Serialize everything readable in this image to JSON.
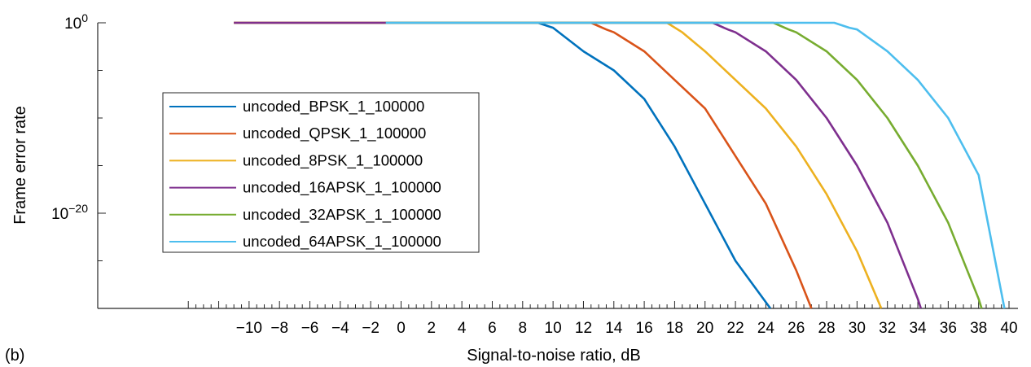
{
  "panel_label": "(b)",
  "chart_data": {
    "type": "line",
    "xlabel": "Signal-to-noise ratio, dB",
    "ylabel": "Frame error rate",
    "xlim": [
      -14,
      40
    ],
    "x_ticks": [
      -10,
      -8,
      -6,
      -4,
      -2,
      0,
      2,
      4,
      6,
      8,
      10,
      12,
      14,
      16,
      18,
      20,
      22,
      24,
      26,
      28,
      30,
      32,
      34,
      36,
      38,
      40
    ],
    "x_minor_step": 0.5,
    "y_scale": "log",
    "ylim_exponent": [
      -30,
      0
    ],
    "y_major_ticks": [
      {
        "exp": 0,
        "base": "10",
        "sup": "0"
      },
      {
        "exp": -20,
        "base": "10",
        "sup": "−20"
      }
    ],
    "y_minor_tick_exponents": [
      -5,
      -10,
      -15,
      -25
    ],
    "grid": false,
    "legend_position": "left-center",
    "series": [
      {
        "name": "uncoded_BPSK_1_100000",
        "color": "#0072BD",
        "points": [
          [
            -11,
            1.0
          ],
          [
            9,
            1.0
          ],
          [
            10,
            0.3
          ],
          [
            12,
            0.001
          ],
          [
            14,
            1e-05
          ],
          [
            16,
            1e-08
          ],
          [
            18,
            1e-13
          ],
          [
            20,
            1e-19
          ],
          [
            22,
            1e-25
          ],
          [
            24.3,
            1e-30
          ]
        ]
      },
      {
        "name": "uncoded_QPSK_1_100000",
        "color": "#D95319",
        "points": [
          [
            -11,
            1.0
          ],
          [
            12.5,
            1.0
          ],
          [
            13.5,
            0.2
          ],
          [
            14,
            0.1
          ],
          [
            16,
            0.001
          ],
          [
            18,
            1e-06
          ],
          [
            20,
            1e-09
          ],
          [
            22,
            1e-14
          ],
          [
            24,
            1e-19
          ],
          [
            26,
            1e-26
          ],
          [
            27,
            1e-30
          ]
        ]
      },
      {
        "name": "uncoded_8PSK_1_100000",
        "color": "#EDB120",
        "points": [
          [
            -11,
            1.0
          ],
          [
            17.5,
            1.0
          ],
          [
            18.5,
            0.1
          ],
          [
            20,
            0.001
          ],
          [
            22,
            1e-06
          ],
          [
            24,
            1e-09
          ],
          [
            26,
            1e-13
          ],
          [
            28,
            1e-18
          ],
          [
            30,
            1e-24
          ],
          [
            31.6,
            1e-30
          ]
        ]
      },
      {
        "name": "uncoded_16APSK_1_100000",
        "color": "#7E2F8E",
        "points": [
          [
            -11,
            1.0
          ],
          [
            20.5,
            1.0
          ],
          [
            21.5,
            0.2
          ],
          [
            22,
            0.1
          ],
          [
            24,
            0.001
          ],
          [
            26,
            1e-06
          ],
          [
            28,
            1e-10
          ],
          [
            30,
            1e-15
          ],
          [
            32,
            1e-21
          ],
          [
            34,
            1e-29
          ],
          [
            34.2,
            1e-30
          ]
        ]
      },
      {
        "name": "uncoded_32APSK_1_100000",
        "color": "#77AC30",
        "points": [
          [
            -1,
            1.0
          ],
          [
            24.5,
            1.0
          ],
          [
            25.5,
            0.2
          ],
          [
            26,
            0.1
          ],
          [
            28,
            0.001
          ],
          [
            30,
            1e-06
          ],
          [
            32,
            1e-10
          ],
          [
            34,
            1e-15
          ],
          [
            36,
            1e-21
          ],
          [
            38,
            1e-29
          ],
          [
            38.2,
            1e-30
          ]
        ]
      },
      {
        "name": "uncoded_64APSK_1_100000",
        "color": "#4DBEEE",
        "points": [
          [
            -1,
            1.0
          ],
          [
            28.5,
            1.0
          ],
          [
            29.5,
            0.3
          ],
          [
            30,
            0.2
          ],
          [
            32,
            0.001
          ],
          [
            34,
            1e-06
          ],
          [
            36,
            1e-10
          ],
          [
            38,
            1e-16
          ],
          [
            39.7,
            1e-30
          ]
        ]
      }
    ]
  }
}
